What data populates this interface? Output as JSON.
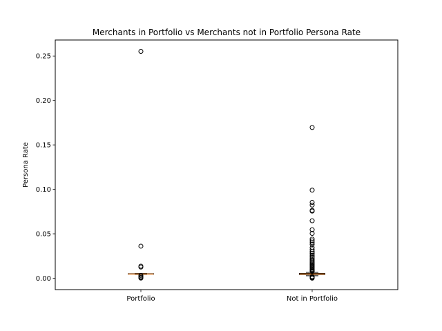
{
  "chart_data": {
    "type": "box",
    "title": "Merchants in Portfolio vs Merchants not in Portfolio Persona Rate",
    "xlabel": "",
    "ylabel": "Persona Rate",
    "categories": [
      "Portfolio",
      "Not in Portfolio"
    ],
    "ylim": [
      -0.0128,
      0.268
    ],
    "yticks": [
      0.0,
      0.05,
      0.1,
      0.15,
      0.2,
      0.25
    ],
    "ytick_labels": [
      "0.00",
      "0.05",
      "0.10",
      "0.15",
      "0.20",
      "0.25"
    ],
    "grid": false,
    "colors": {
      "median": "#ff7f0e",
      "box": "#000000",
      "flier": "#000000"
    },
    "boxes": [
      {
        "category": "Portfolio",
        "q1": 0.0046,
        "median": 0.0048,
        "q3": 0.0051,
        "whisker_low": 0.0044,
        "whisker_high": 0.0053,
        "fliers": [
          0.2552,
          0.0361,
          0.0136,
          0.0126,
          0.0032,
          0.0018,
          0.0008,
          0.0002
        ]
      },
      {
        "category": "Not in Portfolio",
        "q1": 0.0042,
        "median": 0.0048,
        "q3": 0.0054,
        "whisker_low": 0.0028,
        "whisker_high": 0.0066,
        "fliers": [
          0.1696,
          0.0991,
          0.0853,
          0.0823,
          0.0763,
          0.0755,
          0.0647,
          0.0546,
          0.0504,
          0.044,
          0.042,
          0.04,
          0.038,
          0.0345,
          0.032,
          0.0298,
          0.0278,
          0.0258,
          0.024,
          0.0222,
          0.0205,
          0.019,
          0.0176,
          0.0162,
          0.015,
          0.0138,
          0.0126,
          0.0114,
          0.0102,
          0.0092,
          0.0084,
          0.0076,
          0.0018,
          0.0012,
          0.0006,
          0.0001
        ]
      }
    ]
  }
}
